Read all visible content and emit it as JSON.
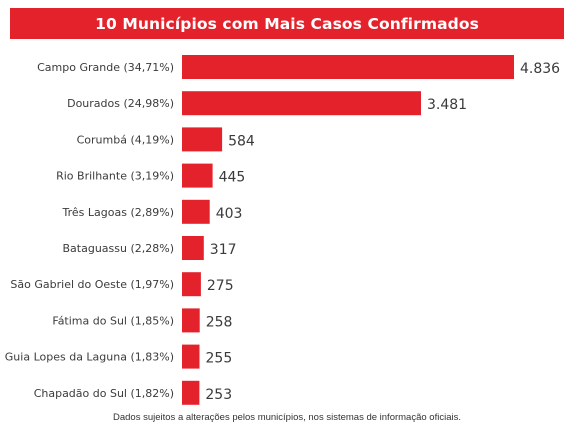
{
  "chart_data": {
    "type": "bar",
    "orientation": "horizontal",
    "title": "10 Municípios com Mais Casos Confirmados",
    "categories": [
      "Campo Grande (34,71%)",
      "Dourados (24,98%)",
      "Corumbá (4,19%)",
      "Rio Brilhante (3,19%)",
      "Três Lagoas (2,89%)",
      "Bataguassu (2,28%)",
      "São Gabriel do Oeste (1,97%)",
      "Fátima do Sul (1,85%)",
      "Guia Lopes da Laguna (1,83%)",
      "Chapadão do Sul (1,82%)"
    ],
    "values": [
      4836,
      3481,
      584,
      445,
      403,
      317,
      275,
      258,
      255,
      253
    ],
    "value_labels": [
      "4.836",
      "3.481",
      "584",
      "445",
      "403",
      "317",
      "275",
      "258",
      "255",
      "253"
    ],
    "xlim": [
      0,
      4836
    ],
    "grid": false,
    "bar_color": "#e4222c"
  },
  "footnote": "Dados sujeitos a alterações pelos municípios, nos sistemas de informação oficiais."
}
